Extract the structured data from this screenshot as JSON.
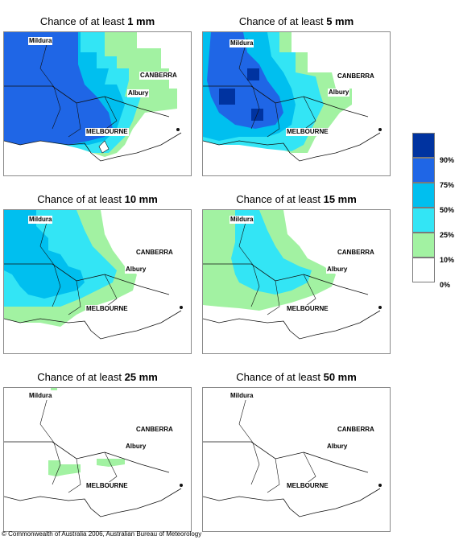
{
  "panels": [
    {
      "prefix": "Chance of at least ",
      "amount": "1 mm"
    },
    {
      "prefix": "Chance of at least ",
      "amount": "5 mm"
    },
    {
      "prefix": "Chance of at least ",
      "amount": "10 mm"
    },
    {
      "prefix": "Chance of at least ",
      "amount": "15 mm"
    },
    {
      "prefix": "Chance of at least ",
      "amount": "25 mm"
    },
    {
      "prefix": "Chance of at least ",
      "amount": "50 mm"
    }
  ],
  "places": {
    "mildura": "Mildura",
    "canberra": "CANBERRA",
    "albury": "Albury",
    "melbourne": "MELBOURNE"
  },
  "legend": {
    "labels": [
      "90%",
      "75%",
      "50%",
      "25%",
      "10%",
      "0%"
    ],
    "colors": [
      "#0033a0",
      "#1f66e6",
      "#00bfef",
      "#33e5f5",
      "#a2f2a2",
      "#ffffff"
    ]
  },
  "copyright": "© Commonwealth of Australia 2006, Australian Bureau of Meteorology"
}
